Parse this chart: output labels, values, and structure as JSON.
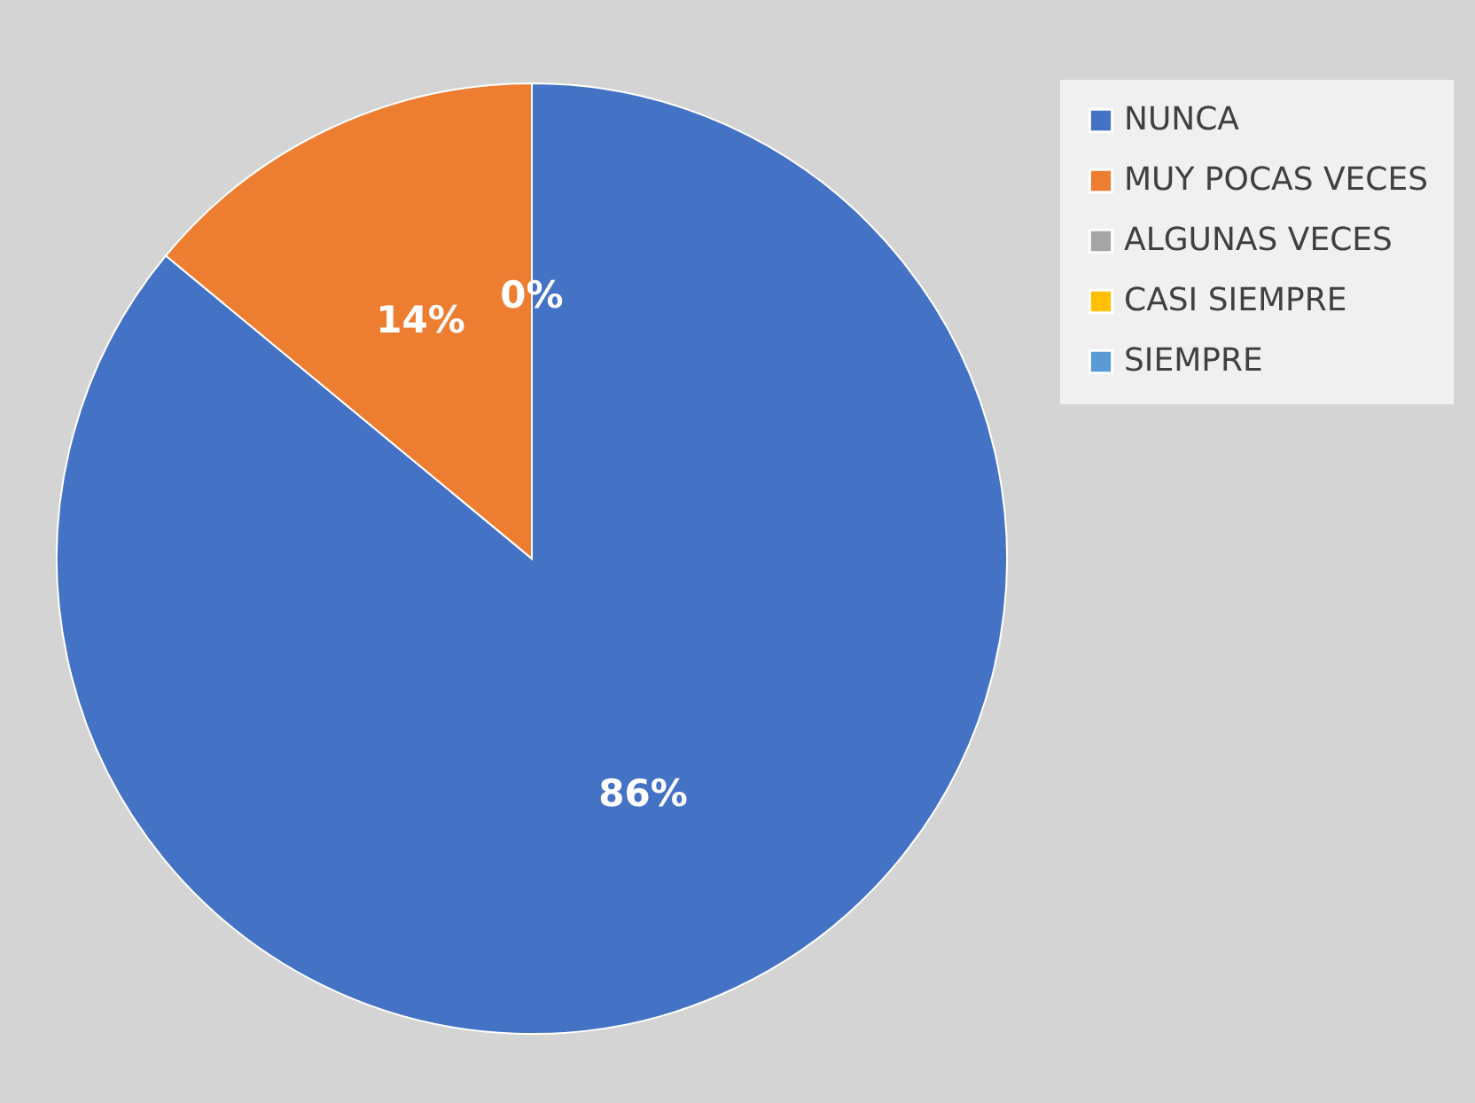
{
  "chart_data": {
    "type": "pie",
    "categories": [
      "NUNCA",
      "MUY POCAS VECES",
      "ALGUNAS VECES",
      "CASI SIEMPRE",
      "SIEMPRE"
    ],
    "values": [
      86,
      14,
      0,
      0,
      0
    ],
    "colors": [
      "#4472c4",
      "#ed7d31",
      "#a5a5a5",
      "#ffc000",
      "#5b9bd5"
    ],
    "value_labels": [
      "86%",
      "14%",
      "0%",
      null,
      null
    ],
    "legend": "right"
  }
}
